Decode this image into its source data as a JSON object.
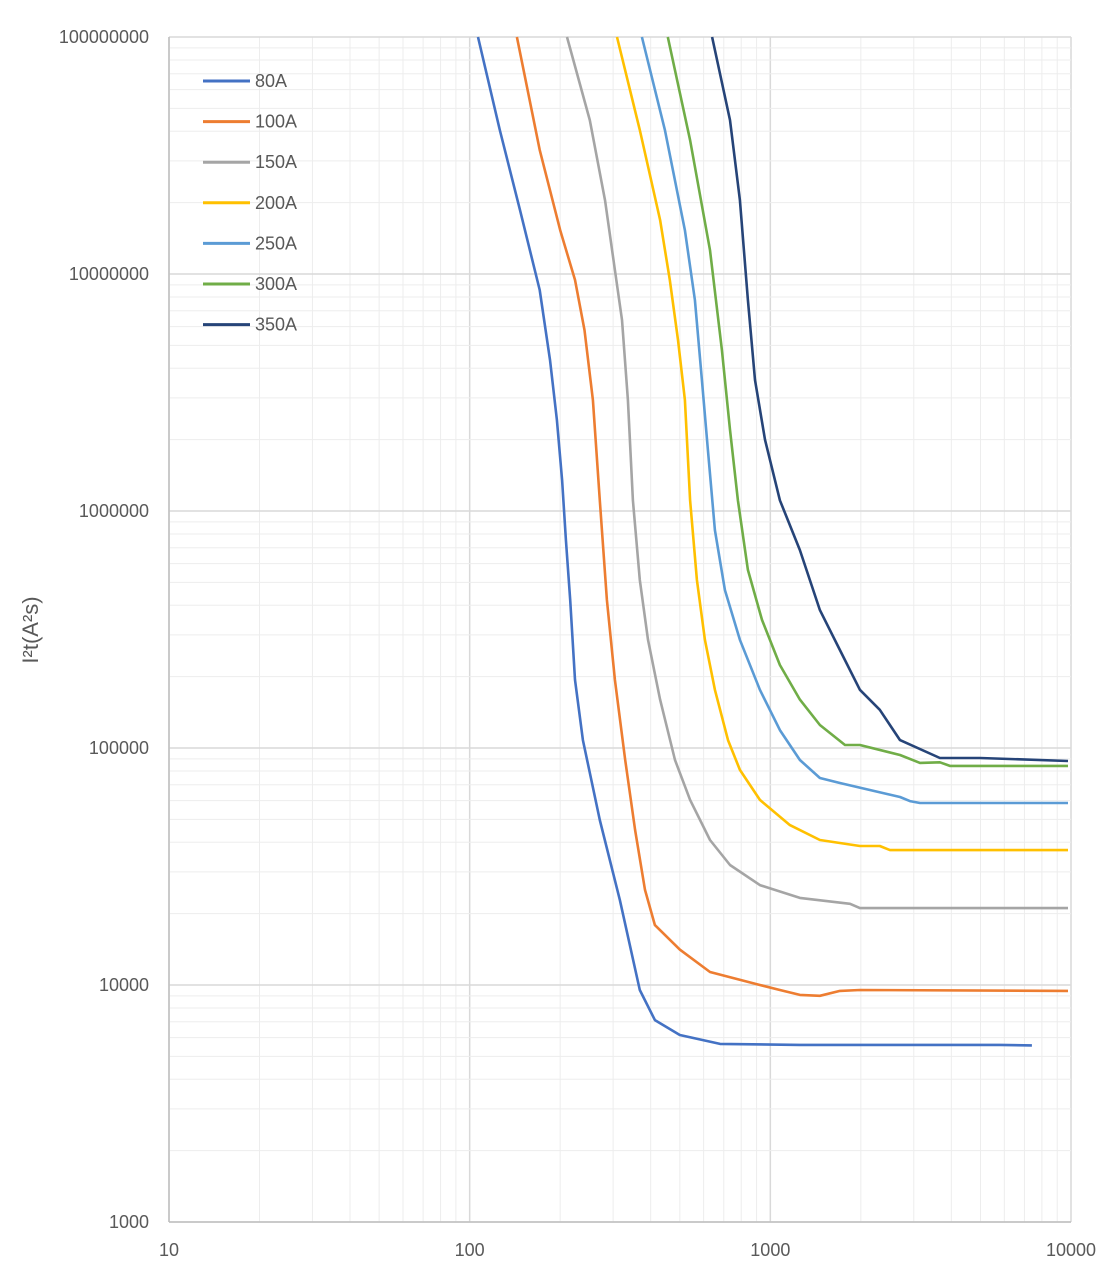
{
  "chart_data": {
    "type": "line",
    "title": "",
    "xlabel": "",
    "ylabel": "I²t(A²s)",
    "xscale": "log",
    "yscale": "log",
    "xlim": [
      10,
      10000
    ],
    "ylim": [
      1000,
      100000000
    ],
    "grid": true,
    "legend_position": "top-left",
    "x_ticks": [
      "10",
      "100",
      "1000",
      "10000"
    ],
    "y_ticks": [
      "1000",
      "10000",
      "100000",
      "1000000",
      "10000000",
      "100000000"
    ],
    "series": [
      {
        "name": "80A",
        "color": "#4472C4",
        "points": [
          [
            106.6,
            100000000.0
          ],
          [
            126,
            40500000.0
          ],
          [
            147,
            18600000.0
          ],
          [
            171,
            8560000.0
          ],
          [
            185,
            4340000.0
          ],
          [
            195,
            2420000.0
          ],
          [
            203,
            1350000.0
          ],
          [
            209,
            755000.0
          ],
          [
            216,
            421000.0
          ],
          [
            224,
            194000.0
          ],
          [
            238,
            108000.0
          ],
          [
            271,
            49700.0
          ],
          [
            316,
            22800.0
          ],
          [
            368,
            9530
          ],
          [
            413,
            7110
          ],
          [
            500,
            6150
          ],
          [
            680,
            5640
          ],
          [
            1254,
            5590
          ],
          [
            5800,
            5590
          ],
          [
            7410,
            5560
          ]
        ]
      },
      {
        "name": "100A",
        "color": "#ED7D31",
        "points": [
          [
            143.6,
            100000000.0
          ],
          [
            171,
            33400000.0
          ],
          [
            200,
            15300000.0
          ],
          [
            224,
            9440000.0
          ],
          [
            241,
            5800000.0
          ],
          [
            257,
            2940000.0
          ],
          [
            271,
            1110000.0
          ],
          [
            286,
            421000.0
          ],
          [
            304,
            194000.0
          ],
          [
            329,
            89000.0
          ],
          [
            355,
            45100.0
          ],
          [
            383,
            25200.0
          ],
          [
            413,
            17900.0
          ],
          [
            500,
            14100.0
          ],
          [
            630,
            11350.0
          ],
          [
            923,
            10000.0
          ],
          [
            1076,
            9530
          ],
          [
            1254,
            9080
          ],
          [
            1462,
            9000
          ],
          [
            1703,
            9440
          ],
          [
            1986,
            9530
          ],
          [
            9770,
            9440
          ]
        ]
      },
      {
        "name": "150A",
        "color": "#A5A5A5",
        "points": [
          [
            210.7,
            100000000.0
          ],
          [
            251,
            44600000.0
          ],
          [
            282,
            20500000.0
          ],
          [
            304,
            10400000.0
          ],
          [
            321,
            6400000.0
          ],
          [
            336,
            2940000.0
          ],
          [
            349,
            1110000.0
          ],
          [
            368,
            512000.0
          ],
          [
            392,
            286000.0
          ],
          [
            430,
            160000.0
          ],
          [
            482,
            89000.0
          ],
          [
            541,
            60400.0
          ],
          [
            630,
            40900.0
          ],
          [
            734,
            32100.0
          ],
          [
            923,
            26400.0
          ],
          [
            1254,
            23300.0
          ],
          [
            1841,
            22000.0
          ],
          [
            1986,
            21100.0
          ],
          [
            9770,
            21100.0
          ]
        ]
      },
      {
        "name": "200A",
        "color": "#FFC000",
        "points": [
          [
            309,
            100000000.0
          ],
          [
            368,
            40500000.0
          ],
          [
            430,
            16900000.0
          ],
          [
            463,
            9440000.0
          ],
          [
            493,
            5270000.0
          ],
          [
            520,
            2940000.0
          ],
          [
            541,
            1110000.0
          ],
          [
            570,
            512000.0
          ],
          [
            606,
            286000.0
          ],
          [
            654,
            176000.0
          ],
          [
            723,
            108000.0
          ],
          [
            792,
            80800.0
          ],
          [
            923,
            60400.0
          ],
          [
            1162,
            47300.0
          ],
          [
            1462,
            40900.0
          ],
          [
            1986,
            38600.0
          ],
          [
            2313,
            38600.0
          ],
          [
            2500,
            37100.0
          ],
          [
            9770,
            37100.0
          ]
        ]
      },
      {
        "name": "250A",
        "color": "#5B9BD5",
        "points": [
          [
            374,
            100000000.0
          ],
          [
            446,
            40500000.0
          ],
          [
            520,
            15300000.0
          ],
          [
            561,
            7770000.0
          ],
          [
            592,
            3570000.0
          ],
          [
            620,
            1810000.0
          ],
          [
            654,
            831000.0
          ],
          [
            706,
            464000.0
          ],
          [
            792,
            286000.0
          ],
          [
            923,
            176000.0
          ],
          [
            1076,
            119000.0
          ],
          [
            1254,
            89000.0
          ],
          [
            1462,
            74700.0
          ],
          [
            1703,
            71200.0
          ],
          [
            2143,
            66500.0
          ],
          [
            2700,
            62100.0
          ],
          [
            2912,
            59700.0
          ],
          [
            3145,
            58600.0
          ],
          [
            9770,
            58600.0
          ]
        ]
      },
      {
        "name": "300A",
        "color": "#70AD47",
        "points": [
          [
            456,
            100000000.0
          ],
          [
            541,
            36700000.0
          ],
          [
            630,
            12600000.0
          ],
          [
            690,
            4780000.0
          ],
          [
            734,
            2200000.0
          ],
          [
            780,
            1110000.0
          ],
          [
            842,
            564000.0
          ],
          [
            938,
            347000.0
          ],
          [
            1076,
            224000.0
          ],
          [
            1254,
            160000.0
          ],
          [
            1462,
            125000.0
          ],
          [
            1771,
            103000.0
          ],
          [
            1986,
            103000.0
          ],
          [
            2700,
            93400.0
          ],
          [
            3145,
            86500.0
          ],
          [
            3665,
            87000.0
          ],
          [
            3955,
            84000.0
          ],
          [
            9770,
            84000.0
          ]
        ]
      },
      {
        "name": "350A",
        "color": "#264478",
        "points": [
          [
            640,
            100000000.0
          ],
          [
            734,
            44600000.0
          ],
          [
            792,
            20500000.0
          ],
          [
            842,
            7770000.0
          ],
          [
            889,
            3570000.0
          ],
          [
            960,
            2000000.0
          ],
          [
            1076,
            1110000.0
          ],
          [
            1254,
            684000.0
          ],
          [
            1462,
            382000.0
          ],
          [
            1703,
            259000.0
          ],
          [
            1986,
            176000.0
          ],
          [
            2313,
            145000.0
          ],
          [
            2700,
            108000.0
          ],
          [
            3665,
            90700.0
          ],
          [
            4980,
            90700.0
          ],
          [
            9770,
            88100.0
          ]
        ]
      }
    ]
  }
}
